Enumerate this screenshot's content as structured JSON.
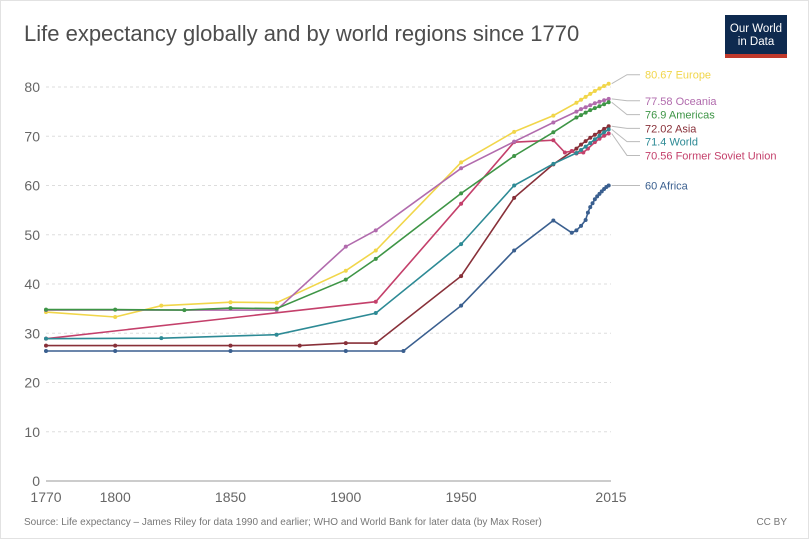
{
  "title": "Life expectancy globally and by world regions since 1770",
  "logo": {
    "line1": "Our World",
    "line2": "in Data"
  },
  "source": "Source: Life expectancy – James Riley for data 1990 and earlier; WHO and World Bank for later data (by Max Roser)",
  "license": "CC BY",
  "chart_data": {
    "type": "line",
    "title": "Life expectancy globally and by world regions since 1770",
    "xlabel": "",
    "ylabel": "",
    "xlim": [
      1770,
      2015
    ],
    "ylim": [
      0,
      80
    ],
    "x_ticks": [
      1770,
      1800,
      1850,
      1900,
      1950,
      2015
    ],
    "y_ticks": [
      0,
      10,
      20,
      30,
      40,
      50,
      60,
      70,
      80
    ],
    "grid": "horizontal dashed",
    "legend": "right end labels",
    "series": [
      {
        "name": "Africa",
        "end_label": "60 Africa",
        "color": "#3a5f8f",
        "points": [
          [
            1770,
            26.4
          ],
          [
            1800,
            26.4
          ],
          [
            1850,
            26.4
          ],
          [
            1900,
            26.4
          ],
          [
            1925,
            26.4
          ],
          [
            1950,
            35.6
          ],
          [
            1973,
            46.8
          ],
          [
            1990,
            52.9
          ],
          [
            1998,
            50.4
          ],
          [
            2000,
            50.9
          ],
          [
            2002,
            51.8
          ],
          [
            2004,
            53.0
          ],
          [
            2005,
            54.5
          ],
          [
            2006,
            55.6
          ],
          [
            2007,
            56.4
          ],
          [
            2008,
            57.2
          ],
          [
            2009,
            57.8
          ],
          [
            2010,
            58.3
          ],
          [
            2011,
            58.8
          ],
          [
            2012,
            59.3
          ],
          [
            2013,
            59.7
          ],
          [
            2014,
            60
          ]
        ]
      },
      {
        "name": "Asia",
        "end_label": "72.02 Asia",
        "color": "#883039",
        "points": [
          [
            1770,
            27.5
          ],
          [
            1800,
            27.5
          ],
          [
            1850,
            27.5
          ],
          [
            1880,
            27.5
          ],
          [
            1900,
            28.0
          ],
          [
            1913,
            28.0
          ],
          [
            1950,
            41.6
          ],
          [
            1973,
            57.5
          ],
          [
            1990,
            64.3
          ],
          [
            2000,
            67.5
          ],
          [
            2002,
            68.3
          ],
          [
            2004,
            69.0
          ],
          [
            2006,
            69.7
          ],
          [
            2008,
            70.3
          ],
          [
            2010,
            70.9
          ],
          [
            2012,
            71.5
          ],
          [
            2014,
            72.02
          ]
        ]
      },
      {
        "name": "Europe",
        "end_label": "80.67 Europe",
        "color": "#f1d64a",
        "points": [
          [
            1770,
            34.3
          ],
          [
            1800,
            33.3
          ],
          [
            1820,
            35.6
          ],
          [
            1850,
            36.3
          ],
          [
            1870,
            36.2
          ],
          [
            1900,
            42.7
          ],
          [
            1913,
            46.8
          ],
          [
            1950,
            64.7
          ],
          [
            1973,
            70.9
          ],
          [
            1990,
            74.2
          ],
          [
            2000,
            76.8
          ],
          [
            2002,
            77.4
          ],
          [
            2004,
            78.0
          ],
          [
            2006,
            78.6
          ],
          [
            2008,
            79.2
          ],
          [
            2010,
            79.7
          ],
          [
            2012,
            80.2
          ],
          [
            2014,
            80.67
          ]
        ]
      },
      {
        "name": "Former Soviet Union",
        "end_label": "70.56 Former Soviet Union",
        "color": "#c4406b",
        "points": [
          [
            1770,
            28.9
          ],
          [
            1913,
            36.4
          ],
          [
            1950,
            56.3
          ],
          [
            1973,
            68.8
          ],
          [
            1990,
            69.2
          ],
          [
            1995,
            66.7
          ],
          [
            1998,
            67.0
          ],
          [
            2000,
            66.5
          ],
          [
            2003,
            66.7
          ],
          [
            2005,
            67.5
          ],
          [
            2008,
            68.8
          ],
          [
            2010,
            69.5
          ],
          [
            2012,
            70.1
          ],
          [
            2014,
            70.56
          ]
        ]
      },
      {
        "name": "Oceania",
        "end_label": "77.58 Oceania",
        "color": "#b16bad",
        "points": [
          [
            1770,
            34.7
          ],
          [
            1870,
            34.7
          ],
          [
            1900,
            47.6
          ],
          [
            1913,
            50.9
          ],
          [
            1950,
            63.5
          ],
          [
            1973,
            68.9
          ],
          [
            1990,
            72.8
          ],
          [
            2000,
            75.0
          ],
          [
            2002,
            75.5
          ],
          [
            2004,
            75.9
          ],
          [
            2006,
            76.3
          ],
          [
            2008,
            76.7
          ],
          [
            2010,
            77.0
          ],
          [
            2012,
            77.3
          ],
          [
            2014,
            77.58
          ]
        ]
      },
      {
        "name": "Americas",
        "end_label": "76.9 Americas",
        "color": "#3e9546",
        "points": [
          [
            1770,
            34.8
          ],
          [
            1800,
            34.8
          ],
          [
            1830,
            34.7
          ],
          [
            1850,
            35.1
          ],
          [
            1870,
            35.0
          ],
          [
            1900,
            40.9
          ],
          [
            1913,
            45.1
          ],
          [
            1950,
            58.4
          ],
          [
            1973,
            66.0
          ],
          [
            1990,
            70.8
          ],
          [
            2000,
            73.8
          ],
          [
            2002,
            74.3
          ],
          [
            2004,
            74.8
          ],
          [
            2006,
            75.3
          ],
          [
            2008,
            75.7
          ],
          [
            2010,
            76.1
          ],
          [
            2012,
            76.5
          ],
          [
            2014,
            76.9
          ]
        ]
      },
      {
        "name": "World",
        "end_label": "71.4 World",
        "color": "#2d8a95",
        "points": [
          [
            1770,
            28.9
          ],
          [
            1820,
            29.0
          ],
          [
            1870,
            29.7
          ],
          [
            1913,
            34.1
          ],
          [
            1950,
            48.1
          ],
          [
            1973,
            60.0
          ],
          [
            1990,
            64.4
          ],
          [
            2000,
            66.6
          ],
          [
            2002,
            67.2
          ],
          [
            2004,
            67.9
          ],
          [
            2006,
            68.6
          ],
          [
            2008,
            69.4
          ],
          [
            2010,
            70.1
          ],
          [
            2012,
            70.8
          ],
          [
            2014,
            71.4
          ]
        ]
      }
    ]
  }
}
